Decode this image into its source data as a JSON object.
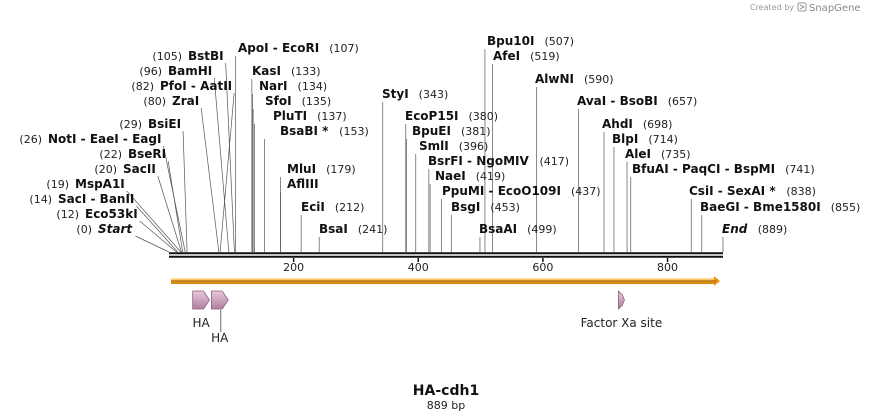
{
  "map": {
    "name": "HA-cdh1",
    "length_label": "889 bp",
    "length": 889
  },
  "credit": {
    "created_by": "Created by",
    "brand": "SnapGene"
  },
  "ticks": [
    {
      "value": 200,
      "label": "200"
    },
    {
      "value": 400,
      "label": "400"
    },
    {
      "value": 600,
      "label": "600"
    },
    {
      "value": 800,
      "label": "800"
    }
  ],
  "enzyme_groups": [
    {
      "pos_label": "(105)",
      "names": [
        "BstBI"
      ],
      "pos_side": "left",
      "sites": [
        105
      ]
    },
    {
      "pos_label": "(107)",
      "names": [
        "ApoI",
        "EcoRI"
      ],
      "pos_side": "right",
      "sites": [
        107
      ]
    },
    {
      "pos_label": "(96)",
      "names": [
        "BamHI"
      ],
      "pos_side": "left",
      "sites": [
        96
      ]
    },
    {
      "pos_label": "(133)",
      "names": [
        "KasI"
      ],
      "pos_side": "right",
      "sites": [
        133
      ]
    },
    {
      "pos_label": "(82)",
      "names": [
        "PfoI",
        "AatII"
      ],
      "pos_side": "left",
      "sites": [
        82
      ]
    },
    {
      "pos_label": "(134)",
      "names": [
        "NarI"
      ],
      "pos_side": "right",
      "sites": [
        134
      ]
    },
    {
      "pos_label": "(80)",
      "names": [
        "ZraI"
      ],
      "pos_side": "left",
      "sites": [
        80
      ]
    },
    {
      "pos_label": "(135)",
      "names": [
        "SfoI"
      ],
      "pos_side": "right",
      "sites": [
        135
      ]
    },
    {
      "pos_label": "(137)",
      "names": [
        "PluTI"
      ],
      "pos_side": "right",
      "sites": [
        137
      ]
    },
    {
      "pos_label": "(29)",
      "names": [
        "BsiEI"
      ],
      "pos_side": "left",
      "sites": [
        29
      ]
    },
    {
      "pos_label": "(153)",
      "names": [
        "BsaBI *"
      ],
      "pos_side": "right",
      "sites": [
        153
      ]
    },
    {
      "pos_label": "(26)",
      "names": [
        "NotI",
        "EaeI",
        "EagI"
      ],
      "pos_side": "left",
      "sites": [
        26
      ]
    },
    {
      "pos_label": "(22)",
      "names": [
        "BseRI"
      ],
      "pos_side": "left",
      "sites": [
        22
      ]
    },
    {
      "pos_label": "(20)",
      "names": [
        "SacII"
      ],
      "pos_side": "left",
      "sites": [
        20
      ]
    },
    {
      "pos_label": "(179)",
      "names": [
        "MluI"
      ],
      "pos_side": "right",
      "sites": [
        179
      ]
    },
    {
      "pos_label": "(19)",
      "names": [
        "MspA1I"
      ],
      "pos_side": "left",
      "sites": [
        19
      ]
    },
    {
      "pos_label": "",
      "names": [
        "AflIII"
      ],
      "pos_side": "right",
      "sites": [
        179
      ]
    },
    {
      "pos_label": "(14)",
      "names": [
        "SacI",
        "BanII"
      ],
      "pos_side": "left",
      "sites": [
        14
      ]
    },
    {
      "pos_label": "(212)",
      "names": [
        "EciI"
      ],
      "pos_side": "right",
      "sites": [
        212
      ]
    },
    {
      "pos_label": "(12)",
      "names": [
        "Eco53kI"
      ],
      "pos_side": "left",
      "sites": [
        12
      ]
    },
    {
      "pos_label": "(241)",
      "names": [
        "BsaI"
      ],
      "pos_side": "right",
      "sites": [
        241
      ]
    },
    {
      "pos_label": "(0)",
      "names": [
        "Start"
      ],
      "pos_side": "left",
      "italic": true,
      "sites": [
        0
      ]
    },
    {
      "pos_label": "(343)",
      "names": [
        "StyI"
      ],
      "pos_side": "right",
      "sites": [
        343
      ]
    },
    {
      "pos_label": "(380)",
      "names": [
        "EcoP15I"
      ],
      "pos_side": "right",
      "sites": [
        380
      ]
    },
    {
      "pos_label": "(381)",
      "names": [
        "BpuEI"
      ],
      "pos_side": "right",
      "sites": [
        381
      ]
    },
    {
      "pos_label": "(396)",
      "names": [
        "SmlI"
      ],
      "pos_side": "right",
      "sites": [
        396
      ]
    },
    {
      "pos_label": "(417)",
      "names": [
        "BsrFI",
        "NgoMIV"
      ],
      "pos_side": "right",
      "sites": [
        417
      ]
    },
    {
      "pos_label": "(419)",
      "names": [
        "NaeI"
      ],
      "pos_side": "right",
      "sites": [
        419
      ]
    },
    {
      "pos_label": "(437)",
      "names": [
        "PpuMI",
        "EcoO109I"
      ],
      "pos_side": "right",
      "sites": [
        437
      ]
    },
    {
      "pos_label": "(453)",
      "names": [
        "BsgI"
      ],
      "pos_side": "right",
      "sites": [
        453
      ]
    },
    {
      "pos_label": "(499)",
      "names": [
        "BsaAI"
      ],
      "pos_side": "right",
      "sites": [
        499
      ]
    },
    {
      "pos_label": "(507)",
      "names": [
        "Bpu10I"
      ],
      "pos_side": "right",
      "sites": [
        507
      ]
    },
    {
      "pos_label": "(519)",
      "names": [
        "AfeI"
      ],
      "pos_side": "right",
      "sites": [
        519
      ]
    },
    {
      "pos_label": "(590)",
      "names": [
        "AlwNI"
      ],
      "pos_side": "right",
      "sites": [
        590
      ]
    },
    {
      "pos_label": "(657)",
      "names": [
        "AvaI",
        "BsoBI"
      ],
      "pos_side": "right",
      "sites": [
        657
      ]
    },
    {
      "pos_label": "(698)",
      "names": [
        "AhdI"
      ],
      "pos_side": "right",
      "sites": [
        698
      ]
    },
    {
      "pos_label": "(714)",
      "names": [
        "BlpI"
      ],
      "pos_side": "right",
      "sites": [
        714
      ]
    },
    {
      "pos_label": "(735)",
      "names": [
        "AleI"
      ],
      "pos_side": "right",
      "sites": [
        735
      ]
    },
    {
      "pos_label": "(741)",
      "names": [
        "BfuAI",
        "PaqCI",
        "BspMI"
      ],
      "pos_side": "right",
      "sites": [
        741
      ]
    },
    {
      "pos_label": "(838)",
      "names": [
        "CsiI",
        "SexAI *"
      ],
      "pos_side": "right",
      "sites": [
        838
      ]
    },
    {
      "pos_label": "(855)",
      "names": [
        "BaeGI",
        "Bme1580I"
      ],
      "pos_side": "right",
      "sites": [
        855
      ]
    },
    {
      "pos_label": "(889)",
      "names": [
        "End"
      ],
      "pos_side": "right",
      "italic": true,
      "sites": [
        889
      ]
    }
  ],
  "features": [
    {
      "label": "HA",
      "start": 38,
      "end": 65,
      "color": "#c9a0b9"
    },
    {
      "label": "HA",
      "start": 68,
      "end": 95,
      "color": "#c9a0b9"
    },
    {
      "label": "Factor Xa site",
      "start": 720,
      "end": 732,
      "color": "#c9a0b9"
    }
  ],
  "colors": {
    "orf": "#f5a623",
    "backbone": "#111111",
    "feature": "#c9a0b9"
  }
}
